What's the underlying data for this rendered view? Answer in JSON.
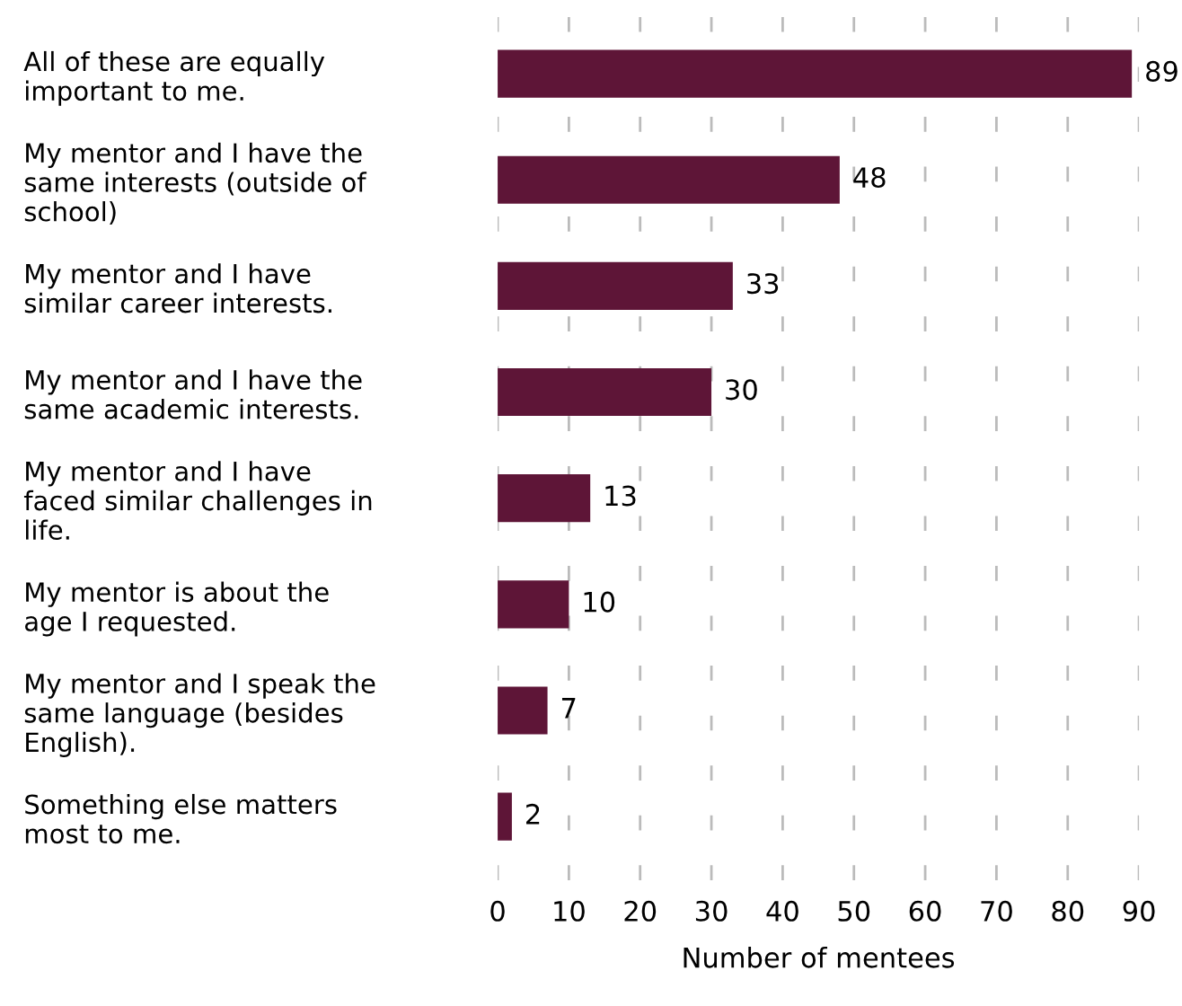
{
  "chart_data": {
    "type": "bar",
    "orientation": "horizontal",
    "xlabel": "Number of mentees",
    "categories": [
      "All of these are equally\nimportant to me.",
      "My mentor and I have the\nsame interests (outside of\nschool)",
      "My mentor and I have\nsimilar career interests.",
      "My mentor and I have the\nsame academic interests.",
      "My mentor and I have\nfaced similar challenges in\nlife.",
      "My mentor is about the\nage I requested.",
      "My mentor and I speak the\nsame language (besides\nEnglish).",
      "Something else matters\nmost to me."
    ],
    "values": [
      89,
      48,
      33,
      30,
      13,
      10,
      7,
      2
    ],
    "color": "#5e1537",
    "data_labels": true,
    "xlim": [
      0,
      90
    ],
    "xticks": [
      0,
      10,
      20,
      30,
      40,
      50,
      60,
      70,
      80,
      90
    ],
    "grid": "x",
    "legend": false
  }
}
